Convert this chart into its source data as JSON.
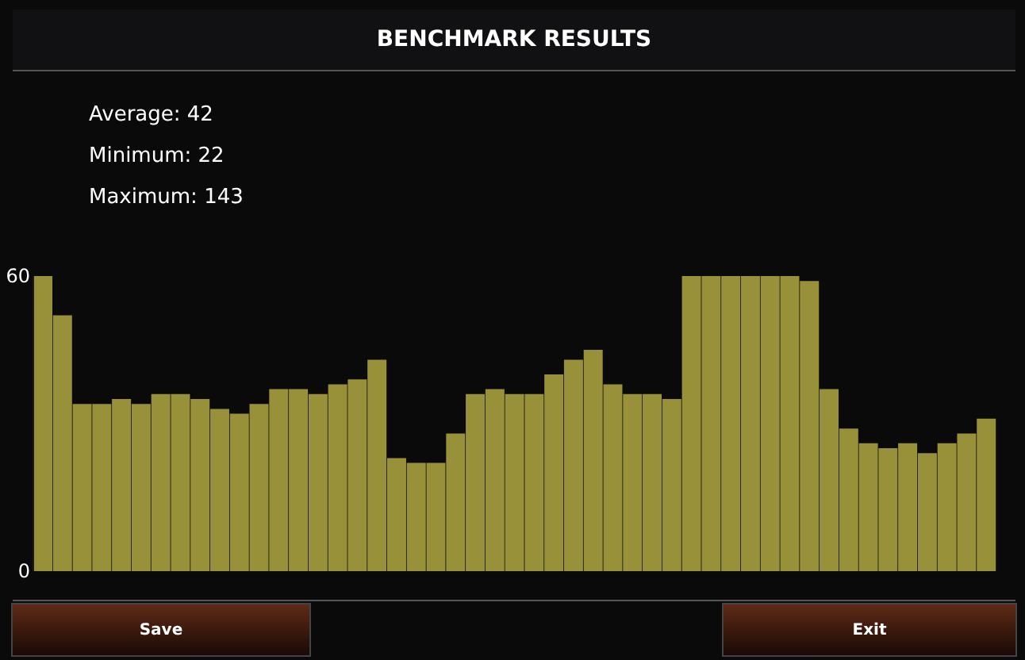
{
  "chart_data": {
    "type": "bar",
    "title": "BENCHMARK RESULTS",
    "annotations": [
      "Average: 42",
      "Minimum: 22",
      "Maximum: 143",
      "Save",
      "Exit"
    ],
    "categories": [
      null,
      null,
      null,
      null,
      null,
      null,
      null,
      null,
      null,
      null,
      null,
      null,
      null,
      null,
      null,
      null,
      null,
      null,
      null,
      null,
      null,
      null,
      null,
      null,
      null,
      null,
      null,
      null,
      null,
      null,
      null,
      null,
      null,
      null,
      null,
      null,
      null,
      null,
      null,
      null,
      null,
      null,
      null,
      null,
      null,
      null,
      null,
      null,
      null
    ],
    "series": [
      {
        "color": "#98913a",
        "values": [
          60,
          52,
          34,
          34,
          35,
          34,
          36,
          36,
          35,
          33,
          32,
          34,
          37,
          37,
          36,
          38,
          39,
          43,
          23,
          22,
          22,
          28,
          36,
          37,
          36,
          36,
          40,
          43,
          45,
          38,
          36,
          36,
          35,
          60,
          60,
          60,
          60,
          60,
          60,
          59,
          37,
          29,
          26,
          25,
          26,
          24,
          26,
          28,
          31
        ]
      }
    ],
    "ylim": [
      0,
      60
    ],
    "yticks": [
      0,
      60
    ],
    "grid": false,
    "legend": false
  }
}
